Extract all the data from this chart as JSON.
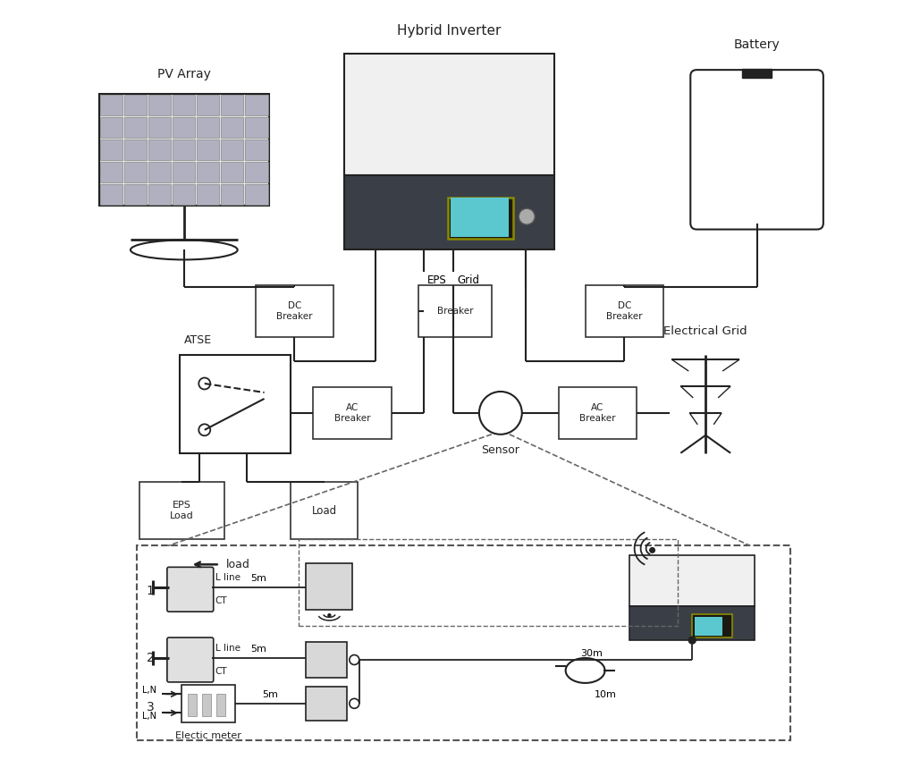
{
  "title": "Hybrid Inverter",
  "bg_color": "#ffffff",
  "line_color": "#222222",
  "inverter_top_color": "#f0f0f0",
  "inverter_bot_color": "#3a3f47",
  "display_color": "#5bc8d0",
  "pv_label": "PV Array",
  "battery_label": "Battery",
  "eps_label": "EPS",
  "grid_label": "Grid",
  "dc_breaker_label": "DC\nBreaker",
  "ac_breaker_label": "AC\nBreaker",
  "breaker_label": "Breaker",
  "atse_label": "ATSE",
  "eps_load_label": "EPS\nLoad",
  "load_label": "Load",
  "sensor_label": "Sensor",
  "elec_grid_label": "Electrical Grid",
  "load_arrow_label": "load",
  "ct_label": "CT",
  "lline_label": "L line",
  "electic_label": "Electic meter",
  "5m_label": "5m",
  "30m_label": "30m",
  "10m_label": "10m"
}
